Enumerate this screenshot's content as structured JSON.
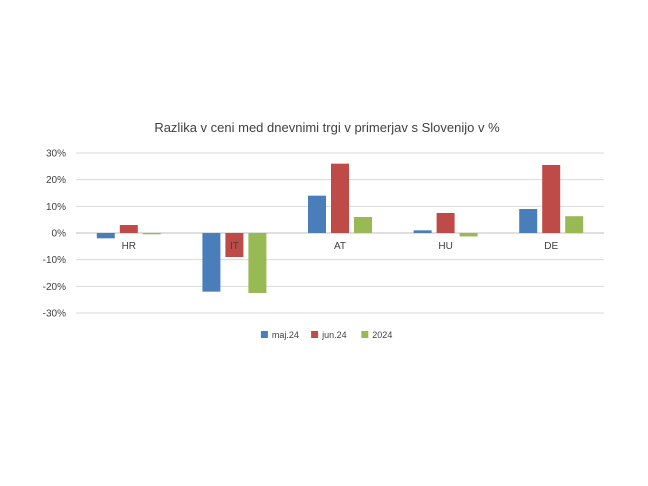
{
  "chart_data": {
    "type": "bar",
    "title": "Razlika v ceni med dnevnimi trgi v primerjav s Slovenijo v %",
    "categories": [
      "HR",
      "IT",
      "AT",
      "HU",
      "DE"
    ],
    "series": [
      {
        "name": "maj.24",
        "color": "#4a7ebb",
        "values": [
          -2,
          -22,
          14,
          1,
          9
        ]
      },
      {
        "name": "jun.24",
        "color": "#be4b48",
        "values": [
          3,
          -9,
          26,
          7.5,
          25.5
        ]
      },
      {
        "name": "2024",
        "color": "#98b954",
        "values": [
          -0.5,
          -22.5,
          6,
          -1.3,
          6.3
        ]
      }
    ],
    "yticks": [
      "30%",
      "20%",
      "10%",
      "0%",
      "-10%",
      "-20%",
      "-30%"
    ],
    "ylim": [
      -30,
      30
    ],
    "grid": true,
    "legend_position": "bottom"
  }
}
